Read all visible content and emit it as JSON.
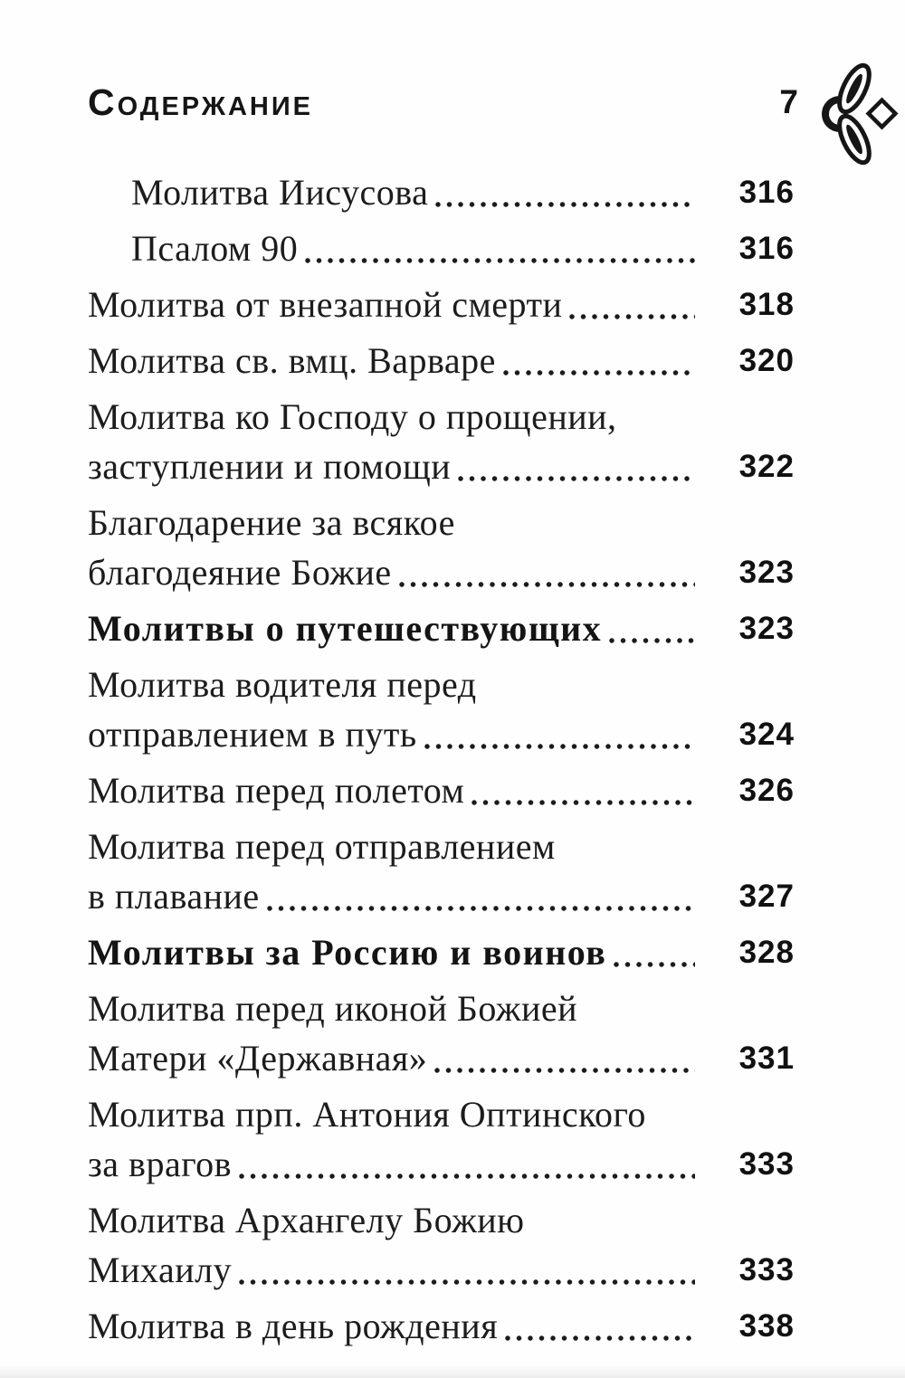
{
  "colors": {
    "text": "#1c1c1c",
    "page_number": "#111111",
    "background": "#fefefe",
    "leader_dots": "#1b1b1b"
  },
  "header": {
    "title": "Содержание",
    "page_number": "7",
    "ornament_icon": "floral-ornament"
  },
  "toc": {
    "entries": [
      {
        "lines": [
          "Молитва Иисусова"
        ],
        "page": "316",
        "indent": true,
        "bold": false
      },
      {
        "lines": [
          "Псалом 90"
        ],
        "page": "316",
        "indent": true,
        "bold": false
      },
      {
        "lines": [
          "Молитва от внезапной смерти"
        ],
        "page": "318",
        "indent": false,
        "bold": false
      },
      {
        "lines": [
          "Молитва св. вмц. Варваре"
        ],
        "page": "320",
        "indent": false,
        "bold": false
      },
      {
        "lines": [
          "Молитва ко Господу о прощении,",
          "заступлении и помощи"
        ],
        "page": "322",
        "indent": false,
        "bold": false
      },
      {
        "lines": [
          "Благодарение за всякое",
          "благодеяние Божие"
        ],
        "page": "323",
        "indent": false,
        "bold": false
      },
      {
        "lines": [
          "Молитвы о путешествующих"
        ],
        "page": "323",
        "indent": false,
        "bold": true
      },
      {
        "lines": [
          "Молитва водителя перед",
          "отправлением в путь"
        ],
        "page": "324",
        "indent": false,
        "bold": false
      },
      {
        "lines": [
          "Молитва перед полетом"
        ],
        "page": "326",
        "indent": false,
        "bold": false
      },
      {
        "lines": [
          "Молитва перед отправлением",
          "в плавание"
        ],
        "page": "327",
        "indent": false,
        "bold": false
      },
      {
        "lines": [
          "Молитвы за Россию и воинов"
        ],
        "page": "328",
        "indent": false,
        "bold": true
      },
      {
        "lines": [
          "Молитва перед иконой Божией",
          "Матери «Державная»"
        ],
        "page": "331",
        "indent": false,
        "bold": false
      },
      {
        "lines": [
          "Молитва прп. Антония Оптинского",
          "за врагов"
        ],
        "page": "333",
        "indent": false,
        "bold": false
      },
      {
        "lines": [
          "Молитва Архангелу Божию",
          "Михаилу"
        ],
        "page": "333",
        "indent": false,
        "bold": false
      },
      {
        "lines": [
          "Молитва в день рождения"
        ],
        "page": "338",
        "indent": false,
        "bold": false
      }
    ]
  }
}
